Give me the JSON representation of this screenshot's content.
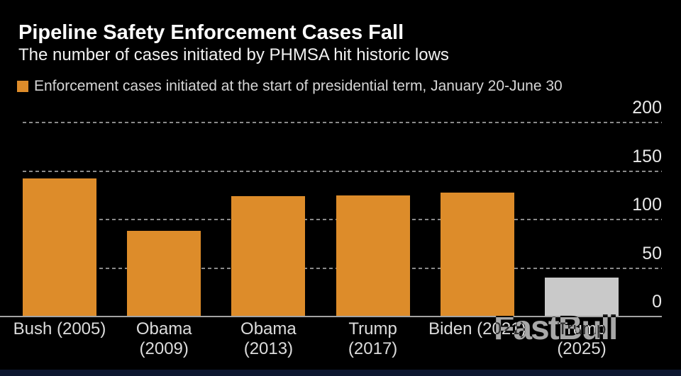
{
  "watermark": "FastBull",
  "colors": {
    "background": "#000000",
    "bar_orange": "#dd8c2a",
    "bar_gray": "#c9c9c9",
    "gridline": "#8a8a8a",
    "axis_line": "#a3a3a3",
    "title_text": "#ffffff",
    "tick_text": "#e8e8e8",
    "watermark_gray": "#a8a8a8",
    "bottom_strip_navy": "#0d1730"
  },
  "chart_data": {
    "type": "bar",
    "title": "Pipeline Safety Enforcement Cases Fall",
    "subtitle": "The number of cases initiated by PHMSA hit historic lows",
    "legend_label": "Enforcement cases initiated at the start of presidential term, January 20-June 30",
    "legend_position": "top-left",
    "categories": [
      "Bush (2005)",
      "Obama (2009)",
      "Obama (2013)",
      "Trump (2017)",
      "Biden (2021)",
      "Trump (2025)"
    ],
    "category_label_lines": [
      [
        "Bush (2005)"
      ],
      [
        "Obama",
        "(2009)"
      ],
      [
        "Obama",
        "(2013)"
      ],
      [
        "Trump",
        "(2017)"
      ],
      [
        "Biden (2021)"
      ],
      [
        "Trump",
        "(2025)"
      ]
    ],
    "values": [
      142,
      88,
      124,
      125,
      128,
      40
    ],
    "bar_colors": [
      "#dd8c2a",
      "#dd8c2a",
      "#dd8c2a",
      "#dd8c2a",
      "#dd8c2a",
      "#c9c9c9"
    ],
    "xlabel": "",
    "ylabel": "",
    "ylim": [
      0,
      200
    ],
    "yticks": [
      0,
      50,
      100,
      150,
      200
    ],
    "y_axis_side": "right",
    "grid": "horizontal-dashed"
  }
}
